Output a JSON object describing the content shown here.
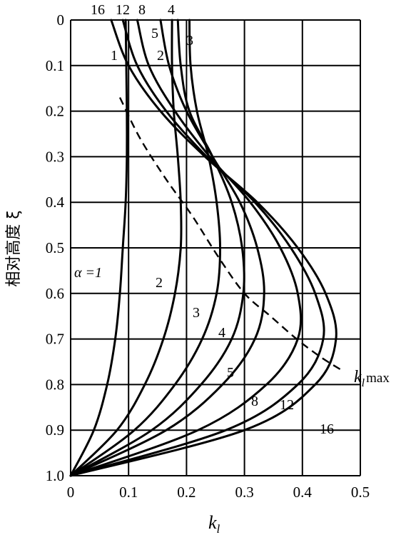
{
  "chart_data": {
    "type": "line",
    "title": "",
    "xlabel": "k",
    "xlabel_sub": "l",
    "ylabel": "相对高度 ξ",
    "xlim": [
      0,
      0.5
    ],
    "ylim": [
      0,
      1.0
    ],
    "y_inverted": true,
    "grid": true,
    "x_ticks": [
      "0",
      "0.1",
      "0.2",
      "0.3",
      "0.4",
      "0.5"
    ],
    "y_ticks": [
      "0",
      "0.1",
      "0.2",
      "0.3",
      "0.4",
      "0.5",
      "0.6",
      "0.7",
      "0.8",
      "0.9",
      "1.0"
    ],
    "series": [
      {
        "name": "1",
        "points": [
          [
            0.095,
            0.0
          ],
          [
            0.096,
            0.1
          ],
          [
            0.097,
            0.2
          ],
          [
            0.097,
            0.3
          ],
          [
            0.095,
            0.4
          ],
          [
            0.09,
            0.5
          ],
          [
            0.085,
            0.6
          ],
          [
            0.077,
            0.7
          ],
          [
            0.063,
            0.8
          ],
          [
            0.04,
            0.9
          ],
          [
            0.0,
            1.0
          ]
        ]
      },
      {
        "name": "2",
        "points": [
          [
            0.175,
            0.0
          ],
          [
            0.175,
            0.1
          ],
          [
            0.178,
            0.2
          ],
          [
            0.185,
            0.3
          ],
          [
            0.19,
            0.4
          ],
          [
            0.19,
            0.5
          ],
          [
            0.18,
            0.6
          ],
          [
            0.16,
            0.7
          ],
          [
            0.128,
            0.8
          ],
          [
            0.08,
            0.9
          ],
          [
            0.0,
            1.0
          ]
        ]
      },
      {
        "name": "3",
        "points": [
          [
            0.205,
            0.0
          ],
          [
            0.207,
            0.1
          ],
          [
            0.218,
            0.2
          ],
          [
            0.238,
            0.3
          ],
          [
            0.252,
            0.4
          ],
          [
            0.258,
            0.5
          ],
          [
            0.252,
            0.6
          ],
          [
            0.227,
            0.7
          ],
          [
            0.18,
            0.8
          ],
          [
            0.11,
            0.9
          ],
          [
            0.0,
            1.0
          ]
        ]
      },
      {
        "name": "4",
        "points": [
          [
            0.185,
            0.0
          ],
          [
            0.19,
            0.1
          ],
          [
            0.205,
            0.2
          ],
          [
            0.245,
            0.3
          ],
          [
            0.278,
            0.4
          ],
          [
            0.296,
            0.5
          ],
          [
            0.298,
            0.6
          ],
          [
            0.278,
            0.7
          ],
          [
            0.225,
            0.8
          ],
          [
            0.14,
            0.9
          ],
          [
            0.0,
            1.0
          ]
        ]
      },
      {
        "name": "5",
        "points": [
          [
            0.155,
            0.0
          ],
          [
            0.17,
            0.1
          ],
          [
            0.2,
            0.2
          ],
          [
            0.245,
            0.3
          ],
          [
            0.292,
            0.4
          ],
          [
            0.322,
            0.5
          ],
          [
            0.334,
            0.6
          ],
          [
            0.318,
            0.7
          ],
          [
            0.262,
            0.8
          ],
          [
            0.165,
            0.9
          ],
          [
            0.0,
            1.0
          ]
        ]
      },
      {
        "name": "8",
        "points": [
          [
            0.115,
            0.0
          ],
          [
            0.135,
            0.1
          ],
          [
            0.18,
            0.2
          ],
          [
            0.24,
            0.3
          ],
          [
            0.31,
            0.4
          ],
          [
            0.362,
            0.5
          ],
          [
            0.392,
            0.6
          ],
          [
            0.392,
            0.7
          ],
          [
            0.338,
            0.8
          ],
          [
            0.22,
            0.9
          ],
          [
            0.0,
            1.0
          ]
        ]
      },
      {
        "name": "12",
        "points": [
          [
            0.09,
            0.0
          ],
          [
            0.115,
            0.1
          ],
          [
            0.165,
            0.2
          ],
          [
            0.235,
            0.3
          ],
          [
            0.318,
            0.4
          ],
          [
            0.38,
            0.5
          ],
          [
            0.422,
            0.6
          ],
          [
            0.436,
            0.7
          ],
          [
            0.392,
            0.8
          ],
          [
            0.268,
            0.9
          ],
          [
            0.0,
            1.0
          ]
        ]
      },
      {
        "name": "16",
        "points": [
          [
            0.07,
            0.0
          ],
          [
            0.1,
            0.1
          ],
          [
            0.155,
            0.2
          ],
          [
            0.232,
            0.3
          ],
          [
            0.322,
            0.4
          ],
          [
            0.392,
            0.5
          ],
          [
            0.44,
            0.6
          ],
          [
            0.458,
            0.7
          ],
          [
            0.422,
            0.8
          ],
          [
            0.3,
            0.9
          ],
          [
            0.0,
            1.0
          ]
        ]
      }
    ],
    "kmax_line": {
      "name": "k_l max",
      "points": [
        [
          0.085,
          0.17
        ],
        [
          0.12,
          0.26
        ],
        [
          0.165,
          0.35
        ],
        [
          0.21,
          0.43
        ],
        [
          0.255,
          0.52
        ],
        [
          0.3,
          0.6
        ],
        [
          0.345,
          0.65
        ],
        [
          0.39,
          0.7
        ],
        [
          0.432,
          0.74
        ],
        [
          0.47,
          0.77
        ]
      ]
    },
    "annotations": {
      "alpha_label": "α =1",
      "kmax_label": "k",
      "kmax_sub": "l",
      "kmax_suffix": "max",
      "bottom_labels": [
        "2",
        "3",
        "4",
        "5",
        "8",
        "12",
        "16"
      ],
      "upper_labels": [
        "1",
        "2",
        "5",
        "3"
      ],
      "top_labels": [
        "16",
        "12",
        "8",
        "4"
      ]
    }
  }
}
